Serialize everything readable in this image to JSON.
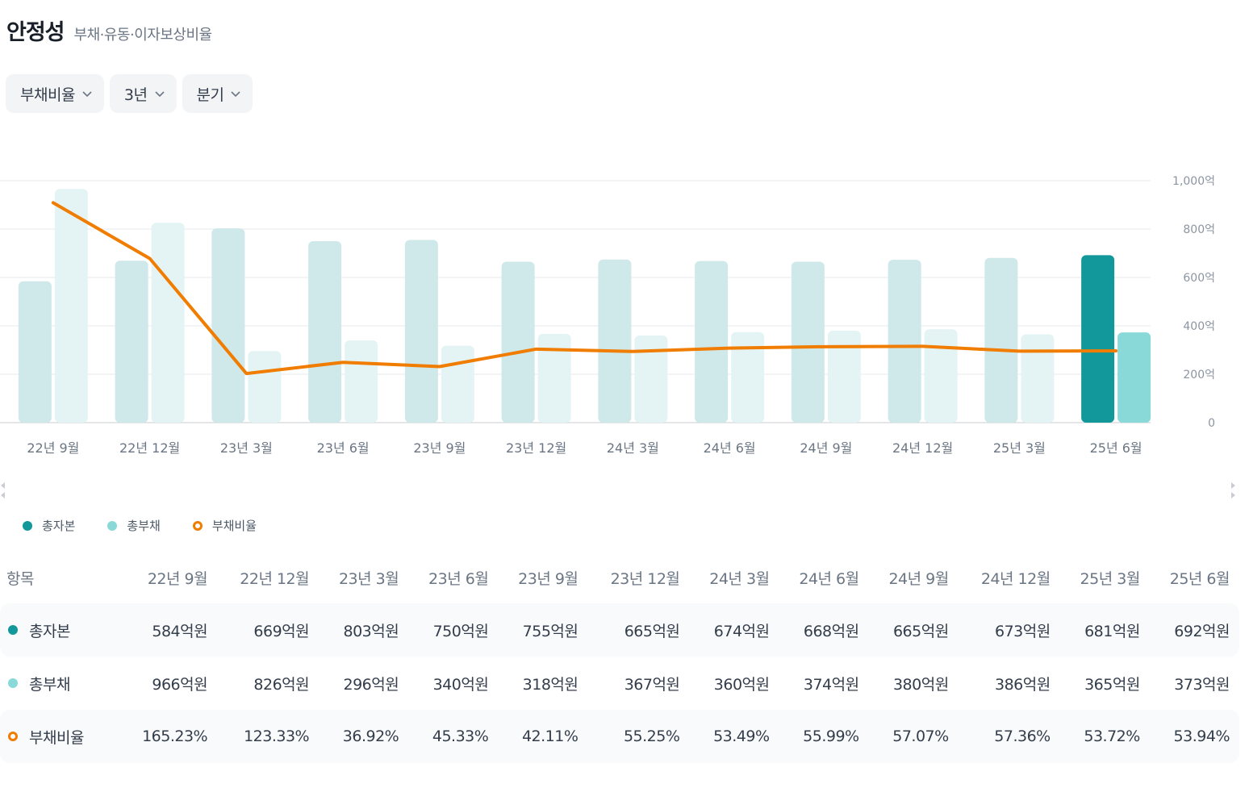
{
  "header": {
    "title": "안정성",
    "subtitle": "부채·유동·이자보상비율"
  },
  "filters": [
    {
      "label": "부채비율",
      "icon": "chevron-down-icon"
    },
    {
      "label": "3년",
      "icon": "chevron-down-icon"
    },
    {
      "label": "분기",
      "icon": "chevron-down-icon"
    }
  ],
  "colors": {
    "equity": "#12989a",
    "equity_light": "#cfe8ea",
    "liabilities": "#89d9d9",
    "liabilities_light": "#e4f4f5",
    "ratio": "#f07c00",
    "grid": "#e5e8eb"
  },
  "chart_data": {
    "type": "bar+line",
    "categories": [
      "22년 9월",
      "22년 12월",
      "23년 3월",
      "23년 6월",
      "23년 9월",
      "23년 12월",
      "24년 3월",
      "24년 6월",
      "24년 9월",
      "24년 12월",
      "25년 3월",
      "25년 6월"
    ],
    "series": [
      {
        "name": "총자본",
        "kind": "bar",
        "values": [
          584,
          669,
          803,
          750,
          755,
          665,
          674,
          668,
          665,
          673,
          681,
          692
        ]
      },
      {
        "name": "총부채",
        "kind": "bar",
        "values": [
          966,
          826,
          296,
          340,
          318,
          367,
          360,
          374,
          380,
          386,
          365,
          373
        ]
      },
      {
        "name": "부채비율",
        "kind": "line",
        "values": [
          165.23,
          123.33,
          36.92,
          45.33,
          42.11,
          55.25,
          53.49,
          55.99,
          57.07,
          57.36,
          53.72,
          53.94
        ]
      }
    ],
    "highlight_index": 11,
    "y_axis": {
      "min": 0,
      "max": 1000,
      "ticks": [
        "0",
        "200억",
        "400억",
        "600억",
        "800억",
        "1,000억"
      ],
      "tick_values": [
        0,
        200,
        400,
        600,
        800,
        1000
      ]
    },
    "legend": [
      "총자본",
      "총부채",
      "부채비율"
    ]
  },
  "table": {
    "header_label": "항목",
    "columns": [
      "22년 9월",
      "22년 12월",
      "23년 3월",
      "23년 6월",
      "23년 9월",
      "23년 12월",
      "24년 3월",
      "24년 6월",
      "24년 9월",
      "24년 12월",
      "25년 3월",
      "25년 6월"
    ],
    "rows": [
      {
        "label": "총자본",
        "cells": [
          "584억원",
          "669억원",
          "803억원",
          "750억원",
          "755억원",
          "665억원",
          "674억원",
          "668억원",
          "665억원",
          "673억원",
          "681억원",
          "692억원"
        ]
      },
      {
        "label": "총부채",
        "cells": [
          "966억원",
          "826억원",
          "296억원",
          "340억원",
          "318억원",
          "367억원",
          "360억원",
          "374억원",
          "380억원",
          "386억원",
          "365억원",
          "373억원"
        ]
      },
      {
        "label": "부채비율",
        "cells": [
          "165.23%",
          "123.33%",
          "36.92%",
          "45.33%",
          "42.11%",
          "55.25%",
          "53.49%",
          "55.99%",
          "57.07%",
          "57.36%",
          "53.72%",
          "53.94%"
        ]
      }
    ]
  }
}
